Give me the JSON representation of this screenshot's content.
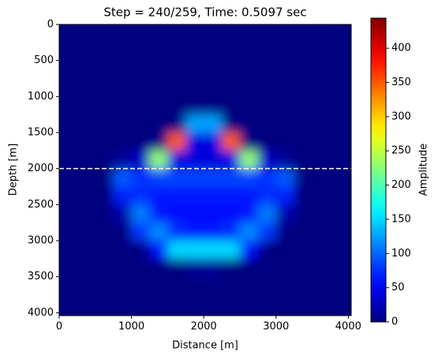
{
  "chart_data": {
    "type": "heatmap",
    "title": "Step = 240/259, Time: 0.5097 sec",
    "xlabel": "Distance [m]",
    "ylabel": "Depth [m]",
    "colorbar_label": "Amplitude",
    "colormap": "jet",
    "x": [
      125,
      375,
      625,
      875,
      1125,
      1375,
      1625,
      1875,
      2125,
      2375,
      2625,
      2875,
      3125,
      3375,
      3625,
      3875
    ],
    "y": [
      125,
      375,
      625,
      875,
      1125,
      1375,
      1625,
      1875,
      2125,
      2375,
      2625,
      2875,
      3125,
      3375,
      3625,
      3875
    ],
    "z": [
      [
        0,
        0,
        0,
        0,
        0,
        0,
        0,
        0,
        0,
        0,
        0,
        0,
        0,
        0,
        0,
        0
      ],
      [
        0,
        0,
        0,
        0,
        0,
        0,
        0,
        0,
        0,
        0,
        0,
        0,
        0,
        0,
        0,
        0
      ],
      [
        0,
        0,
        0,
        0,
        0,
        0,
        0,
        0,
        0,
        0,
        0,
        0,
        0,
        0,
        0,
        0
      ],
      [
        0,
        0,
        0,
        0,
        0,
        0,
        0,
        0,
        0,
        0,
        0,
        0,
        0,
        0,
        0,
        0
      ],
      [
        0,
        0,
        0,
        0,
        0,
        0,
        0,
        0,
        0,
        0,
        0,
        0,
        0,
        0,
        0,
        0
      ],
      [
        0,
        0,
        0,
        0,
        0,
        0,
        0,
        126,
        126,
        0,
        0,
        0,
        0,
        0,
        0,
        0
      ],
      [
        0,
        0,
        0,
        0,
        0,
        2,
        350,
        42,
        42,
        350,
        2,
        0,
        0,
        0,
        0,
        0
      ],
      [
        0,
        0,
        0,
        10,
        30,
        230,
        42,
        40,
        40,
        42,
        230,
        30,
        10,
        0,
        0,
        0
      ],
      [
        0,
        0,
        0,
        95,
        75,
        85,
        85,
        85,
        85,
        85,
        85,
        75,
        95,
        0,
        0,
        0
      ],
      [
        0,
        0,
        0,
        70,
        75,
        65,
        65,
        65,
        65,
        65,
        65,
        75,
        70,
        0,
        0,
        0
      ],
      [
        0,
        0,
        0,
        20,
        110,
        65,
        60,
        60,
        60,
        60,
        65,
        110,
        20,
        0,
        0,
        0
      ],
      [
        0,
        0,
        0,
        0,
        80,
        115,
        75,
        65,
        65,
        75,
        115,
        80,
        0,
        0,
        0,
        0
      ],
      [
        0,
        0,
        0,
        0,
        0,
        60,
        150,
        150,
        150,
        150,
        60,
        0,
        0,
        0,
        0,
        0
      ],
      [
        0,
        0,
        0,
        0,
        0,
        0,
        0,
        10,
        10,
        0,
        0,
        0,
        0,
        0,
        0,
        0
      ],
      [
        0,
        0,
        0,
        0,
        0,
        0,
        0,
        0,
        0,
        0,
        0,
        0,
        0,
        0,
        0,
        0
      ],
      [
        0,
        0,
        0,
        0,
        0,
        0,
        0,
        0,
        0,
        0,
        0,
        0,
        0,
        0,
        0,
        0
      ]
    ],
    "cell": 250,
    "xlim": [
      0,
      4040
    ],
    "ylim": [
      4040,
      0
    ],
    "xticks": [
      0,
      1000,
      2000,
      3000,
      4000
    ],
    "yticks": [
      0,
      500,
      1000,
      1500,
      2000,
      2500,
      3000,
      3500,
      4000
    ],
    "clim": [
      0,
      444
    ],
    "cticks": [
      0,
      50,
      100,
      150,
      200,
      250,
      300,
      350,
      400
    ],
    "hline": {
      "value": 2000,
      "color": "#ffffff"
    }
  }
}
